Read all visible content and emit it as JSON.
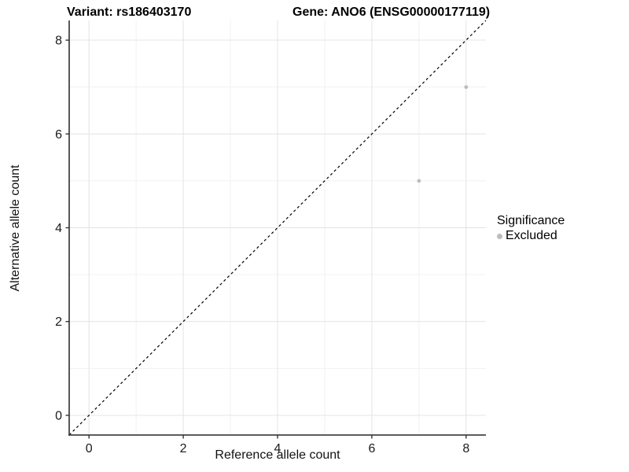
{
  "header": {
    "title_left": "Variant: rs186403170",
    "title_right": "Gene: ANO6 (ENSG00000177119)"
  },
  "chart_data": {
    "type": "scatter",
    "title_left": "Variant: rs186403170",
    "title_right": "Gene: ANO6 (ENSG00000177119)",
    "xlabel": "Reference allele count",
    "ylabel": "Alternative allele count",
    "xlim": [
      -0.42,
      8.42
    ],
    "ylim": [
      -0.42,
      8.42
    ],
    "x_ticks": [
      0,
      2,
      4,
      6,
      8
    ],
    "y_ticks": [
      0,
      2,
      4,
      6,
      8
    ],
    "x_minor_ticks": [
      1,
      3,
      5,
      7
    ],
    "y_minor_ticks": [
      1,
      3,
      5,
      7
    ],
    "grid": true,
    "series": [
      {
        "name": "Excluded",
        "color": "#bdbdbd",
        "points": [
          {
            "x": 7,
            "y": 5
          },
          {
            "x": 8,
            "y": 7
          }
        ]
      }
    ],
    "reference_line": {
      "kind": "identity",
      "style": "dashed",
      "color": "#000000"
    },
    "legend": {
      "title": "Significance",
      "position": "right",
      "items": [
        {
          "label": "Excluded",
          "color": "#bdbdbd"
        }
      ]
    }
  },
  "colors": {
    "background": "#ffffff",
    "grid_major": "#e4e4e4",
    "grid_minor": "#f1f1f1",
    "axis_line": "#454545",
    "tick_mark": "#333333",
    "tick_text": "#1a1a1a",
    "point": "#bdbdbd"
  }
}
